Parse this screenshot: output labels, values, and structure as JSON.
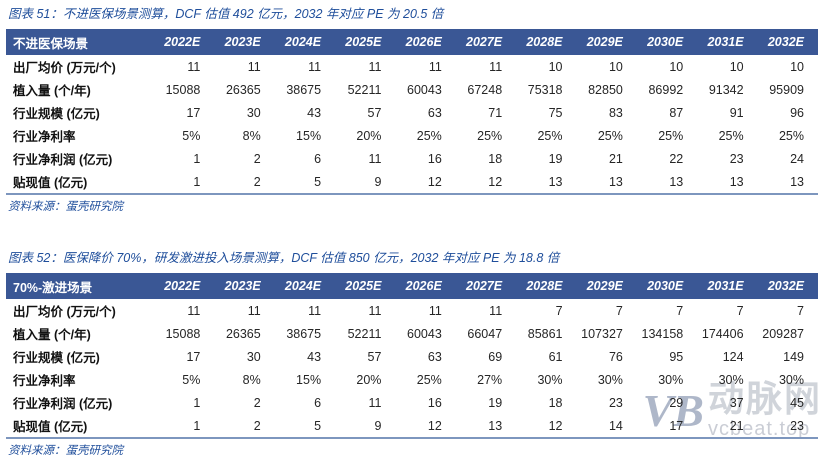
{
  "colors": {
    "header_bg": "#3A5795",
    "header_text": "#FFFFFF",
    "title_text": "#1F4E9B",
    "table_bottom_border": "#7D96BE",
    "body_text": "#262626"
  },
  "figures": [
    {
      "title": "图表 51：不进医保场景测算，DCF 估值 492 亿元，2032 年对应 PE 为 20.5 倍",
      "scenario_label": "不进医保场景",
      "years": [
        "2022E",
        "2023E",
        "2024E",
        "2025E",
        "2026E",
        "2027E",
        "2028E",
        "2029E",
        "2030E",
        "2031E",
        "2032E"
      ],
      "rows": [
        {
          "label": "出厂均价 (万元/个)",
          "values": [
            "11",
            "11",
            "11",
            "11",
            "11",
            "11",
            "10",
            "10",
            "10",
            "10",
            "10"
          ]
        },
        {
          "label": "植入量 (个/年)",
          "values": [
            "15088",
            "26365",
            "38675",
            "52211",
            "60043",
            "67248",
            "75318",
            "82850",
            "86992",
            "91342",
            "95909"
          ]
        },
        {
          "label": "行业规模 (亿元)",
          "values": [
            "17",
            "30",
            "43",
            "57",
            "63",
            "71",
            "75",
            "83",
            "87",
            "91",
            "96"
          ]
        },
        {
          "label": "行业净利率",
          "values": [
            "5%",
            "8%",
            "15%",
            "20%",
            "25%",
            "25%",
            "25%",
            "25%",
            "25%",
            "25%",
            "25%"
          ]
        },
        {
          "label": "行业净利润 (亿元)",
          "values": [
            "1",
            "2",
            "6",
            "11",
            "16",
            "18",
            "19",
            "21",
            "22",
            "23",
            "24"
          ]
        },
        {
          "label": "贴现值 (亿元)",
          "values": [
            "1",
            "2",
            "5",
            "9",
            "12",
            "12",
            "13",
            "13",
            "13",
            "13",
            "13"
          ]
        }
      ],
      "source": "资料来源：蛋壳研究院"
    },
    {
      "title": "图表 52：医保降价 70%，研发激进投入场景测算，DCF 估值 850 亿元，2032 年对应 PE 为 18.8 倍",
      "scenario_label": "70%-激进场景",
      "years": [
        "2022E",
        "2023E",
        "2024E",
        "2025E",
        "2026E",
        "2027E",
        "2028E",
        "2029E",
        "2030E",
        "2031E",
        "2032E"
      ],
      "rows": [
        {
          "label": "出厂均价 (万元/个)",
          "values": [
            "11",
            "11",
            "11",
            "11",
            "11",
            "11",
            "7",
            "7",
            "7",
            "7",
            "7"
          ]
        },
        {
          "label": "植入量 (个/年)",
          "values": [
            "15088",
            "26365",
            "38675",
            "52211",
            "60043",
            "66047",
            "85861",
            "107327",
            "134158",
            "174406",
            "209287"
          ]
        },
        {
          "label": "行业规模 (亿元)",
          "values": [
            "17",
            "30",
            "43",
            "57",
            "63",
            "69",
            "61",
            "76",
            "95",
            "124",
            "149"
          ]
        },
        {
          "label": "行业净利率",
          "values": [
            "5%",
            "8%",
            "15%",
            "20%",
            "25%",
            "27%",
            "30%",
            "30%",
            "30%",
            "30%",
            "30%"
          ]
        },
        {
          "label": "行业净利润 (亿元)",
          "values": [
            "1",
            "2",
            "6",
            "11",
            "16",
            "19",
            "18",
            "23",
            "29",
            "37",
            "45"
          ]
        },
        {
          "label": "贴现值 (亿元)",
          "values": [
            "1",
            "2",
            "5",
            "9",
            "12",
            "13",
            "12",
            "14",
            "17",
            "21",
            "23"
          ]
        }
      ],
      "source": "资料来源：蛋壳研究院"
    }
  ],
  "watermark": {
    "logo_text": "VB",
    "brand": "动脉网",
    "url": "vcbeat.top"
  }
}
